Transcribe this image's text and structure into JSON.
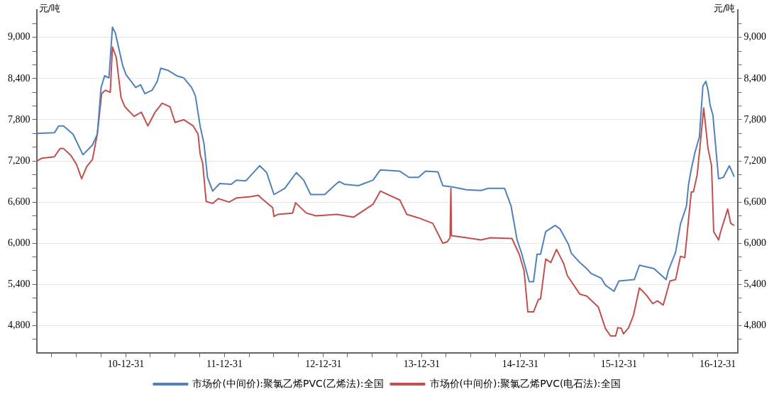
{
  "chart_data": {
    "type": "line",
    "ylabel": "元/吨",
    "y2label": "元/吨",
    "grid": "y",
    "legend": "bottom",
    "xlim": [
      "2010-02-03",
      "2017-03-15"
    ],
    "xticks": [
      {
        "value": "2010-03-31",
        "label": null
      },
      {
        "value": "2010-06-30",
        "label": null
      },
      {
        "value": "2010-09-30",
        "label": null
      },
      {
        "value": "2010-12-31",
        "label": "10-12-31"
      },
      {
        "value": "2011-03-31",
        "label": null
      },
      {
        "value": "2011-06-30",
        "label": null
      },
      {
        "value": "2011-09-30",
        "label": null
      },
      {
        "value": "2011-12-31",
        "label": "11-12-31"
      },
      {
        "value": "2012-03-31",
        "label": null
      },
      {
        "value": "2012-06-30",
        "label": null
      },
      {
        "value": "2012-09-30",
        "label": null
      },
      {
        "value": "2012-12-31",
        "label": "12-12-31"
      },
      {
        "value": "2013-03-31",
        "label": null
      },
      {
        "value": "2013-06-30",
        "label": null
      },
      {
        "value": "2013-09-30",
        "label": null
      },
      {
        "value": "2013-12-31",
        "label": "13-12-31"
      },
      {
        "value": "2014-03-31",
        "label": null
      },
      {
        "value": "2014-06-30",
        "label": null
      },
      {
        "value": "2014-09-30",
        "label": null
      },
      {
        "value": "2014-12-31",
        "label": "14-12-31"
      },
      {
        "value": "2015-03-31",
        "label": null
      },
      {
        "value": "2015-06-30",
        "label": null
      },
      {
        "value": "2015-09-30",
        "label": null
      },
      {
        "value": "2015-12-31",
        "label": "15-12-31"
      },
      {
        "value": "2016-03-31",
        "label": null
      },
      {
        "value": "2016-06-30",
        "label": null
      },
      {
        "value": "2016-09-30",
        "label": null
      },
      {
        "value": "2016-12-31",
        "label": "16-12-31"
      }
    ],
    "ylim": [
      4400,
      9400
    ],
    "yticks": [
      {
        "value": 4600,
        "label": null
      },
      {
        "value": 4800,
        "label": "4,800"
      },
      {
        "value": 5000,
        "label": null
      },
      {
        "value": 5200,
        "label": null
      },
      {
        "value": 5400,
        "label": "5,400"
      },
      {
        "value": 5600,
        "label": null
      },
      {
        "value": 5800,
        "label": null
      },
      {
        "value": 6000,
        "label": "6,000"
      },
      {
        "value": 6200,
        "label": null
      },
      {
        "value": 6400,
        "label": null
      },
      {
        "value": 6600,
        "label": "6,600"
      },
      {
        "value": 6800,
        "label": null
      },
      {
        "value": 7000,
        "label": null
      },
      {
        "value": 7200,
        "label": "7,200"
      },
      {
        "value": 7400,
        "label": null
      },
      {
        "value": 7600,
        "label": null
      },
      {
        "value": 7800,
        "label": "7,800"
      },
      {
        "value": 8000,
        "label": null
      },
      {
        "value": 8200,
        "label": null
      },
      {
        "value": 8400,
        "label": "8,400"
      },
      {
        "value": 8600,
        "label": null
      },
      {
        "value": 8800,
        "label": null
      },
      {
        "value": 9000,
        "label": "9,000"
      },
      {
        "value": 9200,
        "label": null
      }
    ],
    "y2lim": [
      4400,
      9400
    ],
    "y2ticks": [
      {
        "value": 4600,
        "label": null
      },
      {
        "value": 4800,
        "label": "4,800"
      },
      {
        "value": 5000,
        "label": null
      },
      {
        "value": 5200,
        "label": null
      },
      {
        "value": 5400,
        "label": "5,400"
      },
      {
        "value": 5600,
        "label": null
      },
      {
        "value": 5800,
        "label": null
      },
      {
        "value": 6000,
        "label": "6,000"
      },
      {
        "value": 6200,
        "label": null
      },
      {
        "value": 6400,
        "label": null
      },
      {
        "value": 6600,
        "label": "6,600"
      },
      {
        "value": 6800,
        "label": null
      },
      {
        "value": 7000,
        "label": null
      },
      {
        "value": 7200,
        "label": "7,200"
      },
      {
        "value": 7400,
        "label": null
      },
      {
        "value": 7600,
        "label": null
      },
      {
        "value": 7800,
        "label": "7,800"
      },
      {
        "value": 8000,
        "label": null
      },
      {
        "value": 8200,
        "label": null
      },
      {
        "value": 8400,
        "label": "8,400"
      },
      {
        "value": 8600,
        "label": null
      },
      {
        "value": 8800,
        "label": null
      },
      {
        "value": 9000,
        "label": "9,000"
      },
      {
        "value": 9200,
        "label": null
      }
    ],
    "series": [
      {
        "name": "市场价(中间价):聚氯乙烯PVC(乙烯法):全国",
        "color": "#4f81bd",
        "x": [
          "2010-02-05",
          "2010-04-10",
          "2010-04-26",
          "2010-05-14",
          "2010-06-18",
          "2010-07-25",
          "2010-08-29",
          "2010-09-16",
          "2010-09-30",
          "2010-10-13",
          "2010-10-29",
          "2010-11-11",
          "2010-11-22",
          "2010-11-30",
          "2010-12-19",
          "2010-12-31",
          "2011-02-05",
          "2011-02-23",
          "2011-03-11",
          "2011-04-07",
          "2011-04-26",
          "2011-05-09",
          "2011-06-04",
          "2011-07-07",
          "2011-08-02",
          "2011-08-31",
          "2011-09-14",
          "2011-10-02",
          "2011-10-16",
          "2011-10-29",
          "2011-11-17",
          "2011-12-13",
          "2012-01-25",
          "2012-02-13",
          "2012-03-19",
          "2012-05-09",
          "2012-06-04",
          "2012-07-01",
          "2012-08-10",
          "2012-09-22",
          "2012-10-19",
          "2012-11-14",
          "2013-01-06",
          "2013-02-13",
          "2013-03-01",
          "2013-03-19",
          "2013-05-11",
          "2013-07-04",
          "2013-07-31",
          "2013-10-11",
          "2013-11-14",
          "2013-12-19",
          "2014-01-14",
          "2014-03-01",
          "2014-03-19",
          "2014-04-23",
          "2014-06-15",
          "2014-08-08",
          "2014-09-03",
          "2014-11-03",
          "2014-11-27",
          "2014-12-19",
          "2015-01-06",
          "2015-02-02",
          "2015-02-18",
          "2015-03-03",
          "2015-03-16",
          "2015-04-04",
          "2015-05-09",
          "2015-05-27",
          "2015-06-28",
          "2015-07-07",
          "2015-08-08",
          "2015-09-03",
          "2015-09-19",
          "2015-10-27",
          "2015-11-11",
          "2015-12-13",
          "2015-12-31",
          "2016-02-26",
          "2016-03-16",
          "2016-05-09",
          "2016-06-23",
          "2016-07-01",
          "2016-07-28",
          "2016-08-15",
          "2016-09-06",
          "2016-09-14",
          "2016-09-24",
          "2016-10-08",
          "2016-10-24",
          "2016-11-06",
          "2016-11-17",
          "2016-11-25",
          "2016-12-03",
          "2016-12-13",
          "2017-01-04",
          "2017-01-22",
          "2017-02-13",
          "2017-03-03"
        ],
        "values": [
          7600,
          7610,
          7710,
          7710,
          7590,
          7290,
          7430,
          7590,
          8270,
          8440,
          8410,
          9150,
          9060,
          8920,
          8590,
          8460,
          8270,
          8310,
          8180,
          8230,
          8360,
          8550,
          8520,
          8440,
          8410,
          8270,
          8150,
          7700,
          7450,
          6960,
          6760,
          6870,
          6860,
          6920,
          6910,
          7130,
          7030,
          6710,
          6800,
          7030,
          6920,
          6710,
          6710,
          6850,
          6900,
          6860,
          6840,
          6920,
          7070,
          7050,
          6960,
          6960,
          7050,
          7040,
          6840,
          6820,
          6780,
          6770,
          6800,
          6800,
          6540,
          6050,
          5840,
          5440,
          5440,
          5840,
          5840,
          6170,
          6260,
          6210,
          5980,
          5860,
          5720,
          5630,
          5560,
          5490,
          5390,
          5300,
          5450,
          5470,
          5680,
          5630,
          5470,
          5600,
          5870,
          6280,
          6540,
          6860,
          7080,
          7330,
          7550,
          8290,
          8360,
          8230,
          8010,
          7870,
          6940,
          6960,
          7130,
          6970
        ]
      },
      {
        "name": "市场价(中间价):聚氯乙烯PVC(电石法):全国",
        "color": "#c0504d",
        "x": [
          "2010-02-05",
          "2010-02-23",
          "2010-04-10",
          "2010-05-01",
          "2010-05-14",
          "2010-06-10",
          "2010-07-01",
          "2010-07-20",
          "2010-08-08",
          "2010-08-29",
          "2010-09-16",
          "2010-10-02",
          "2010-10-16",
          "2010-11-03",
          "2010-11-11",
          "2010-11-25",
          "2010-12-13",
          "2010-12-27",
          "2011-01-30",
          "2011-02-26",
          "2011-03-22",
          "2011-04-18",
          "2011-05-14",
          "2011-06-12",
          "2011-07-01",
          "2011-08-02",
          "2011-09-06",
          "2011-09-24",
          "2011-10-02",
          "2011-10-11",
          "2011-10-24",
          "2011-11-17",
          "2011-12-08",
          "2012-01-17",
          "2012-02-13",
          "2012-04-07",
          "2012-05-04",
          "2012-05-17",
          "2012-06-26",
          "2012-07-01",
          "2012-07-15",
          "2012-09-08",
          "2012-09-19",
          "2012-10-29",
          "2012-12-03",
          "2013-02-21",
          "2013-04-23",
          "2013-05-20",
          "2013-07-04",
          "2013-07-31",
          "2013-10-11",
          "2013-11-06",
          "2013-12-19",
          "2014-02-10",
          "2014-03-19",
          "2014-04-04",
          "2014-04-15",
          "2014-04-18",
          "2014-04-20",
          "2014-06-15",
          "2014-08-08",
          "2014-09-11",
          "2014-11-30",
          "2014-12-27",
          "2015-01-14",
          "2015-01-28",
          "2015-02-18",
          "2015-03-08",
          "2015-03-16",
          "2015-04-04",
          "2015-04-23",
          "2015-05-14",
          "2015-05-27",
          "2015-06-10",
          "2015-06-23",
          "2015-08-08",
          "2015-09-03",
          "2015-09-30",
          "2015-10-16",
          "2015-11-11",
          "2015-11-30",
          "2015-12-19",
          "2015-12-27",
          "2016-01-09",
          "2016-01-17",
          "2016-02-05",
          "2016-02-23",
          "2016-03-16",
          "2016-04-12",
          "2016-05-04",
          "2016-05-22",
          "2016-06-12",
          "2016-07-07",
          "2016-07-28",
          "2016-08-15",
          "2016-08-31",
          "2016-09-24",
          "2016-10-02",
          "2016-10-16",
          "2016-10-29",
          "2016-11-09",
          "2016-11-25",
          "2016-12-08",
          "2016-12-16",
          "2017-01-04",
          "2017-01-12",
          "2017-02-07",
          "2017-02-18",
          "2017-03-03"
        ],
        "values": [
          7200,
          7240,
          7260,
          7380,
          7380,
          7280,
          7150,
          6940,
          7120,
          7220,
          7590,
          8180,
          8230,
          8200,
          8860,
          8710,
          8120,
          7990,
          7850,
          7910,
          7710,
          7910,
          8040,
          7990,
          7760,
          7800,
          7710,
          7590,
          7290,
          7170,
          6610,
          6580,
          6650,
          6600,
          6660,
          6680,
          6700,
          6650,
          6520,
          6390,
          6420,
          6440,
          6590,
          6440,
          6400,
          6420,
          6380,
          6450,
          6570,
          6760,
          6630,
          6420,
          6370,
          6290,
          6000,
          6020,
          6080,
          6800,
          6110,
          6080,
          6050,
          6080,
          6070,
          5840,
          5600,
          5000,
          5000,
          5180,
          5190,
          5770,
          5720,
          5910,
          5810,
          5700,
          5530,
          5260,
          5230,
          5130,
          5070,
          4760,
          4650,
          4650,
          4770,
          4760,
          4680,
          4770,
          4950,
          5350,
          5240,
          5120,
          5160,
          5100,
          5450,
          5470,
          5810,
          5790,
          6750,
          6750,
          7000,
          7520,
          7970,
          7380,
          7130,
          6170,
          6050,
          6170,
          6500,
          6290,
          6260
        ]
      }
    ]
  }
}
